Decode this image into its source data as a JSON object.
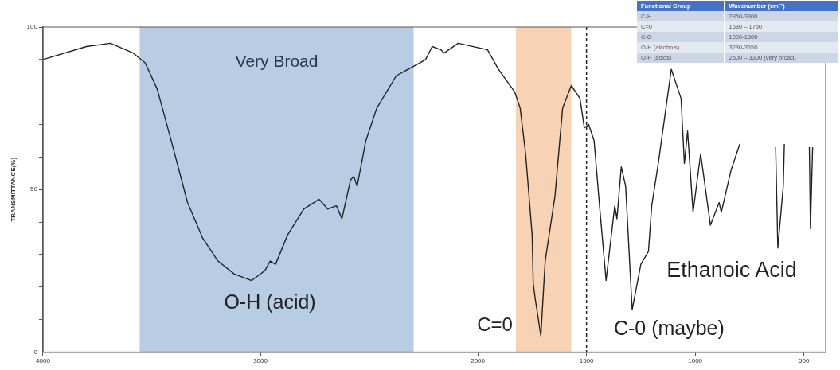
{
  "chart_data": [
    {
      "type": "line",
      "title": "Ethanoic Acid",
      "ylabel": "TRANSMITTANCE(%)",
      "x": [
        4000,
        3800,
        3690,
        3585,
        3530,
        3475,
        3410,
        3335,
        3265,
        3195,
        3120,
        3040,
        2980,
        2955,
        2930,
        2875,
        2800,
        2730,
        2690,
        2650,
        2625,
        2585,
        2570,
        2555,
        2515,
        2465,
        2375,
        2265,
        2240,
        2210,
        2170,
        2155,
        2090,
        1955,
        1905,
        1830,
        1805,
        1780,
        1750,
        1745,
        1735,
        1710,
        1690,
        1645,
        1610,
        1570,
        1530,
        1510,
        1490,
        1465,
        1440,
        1410,
        1370,
        1360,
        1340,
        1320,
        1290,
        1250,
        1215,
        1200,
        1170,
        1110,
        1065,
        1050,
        1035,
        1010,
        975,
        930,
        890,
        880,
        835,
        795,
        700,
        630,
        620,
        595,
        590,
        530,
        475,
        470,
        460
      ],
      "series": [
        {
          "color": "#222222",
          "values": [
            90,
            94,
            95,
            92,
            89,
            81,
            65,
            46,
            35,
            28,
            24,
            22,
            25,
            28,
            27,
            36,
            44,
            47,
            44,
            45,
            41,
            53,
            54,
            51,
            65,
            75,
            85,
            89,
            90,
            94,
            93,
            92,
            95,
            93,
            87,
            80,
            75,
            61,
            36,
            21,
            16,
            5,
            28,
            48,
            75,
            82,
            78,
            69,
            70,
            65,
            45,
            22,
            45,
            41,
            57,
            51,
            13,
            27,
            31,
            45,
            58,
            87,
            78,
            58,
            68,
            43,
            61,
            39,
            46,
            43,
            56,
            64,
            null,
            63,
            32,
            51,
            64,
            null,
            63,
            38,
            63
          ]
        }
      ],
      "xlim": [
        4000,
        400
      ],
      "xticks": [
        4000,
        3000,
        2000,
        1500,
        1000,
        500
      ],
      "ylim": [
        0,
        100
      ],
      "yticks": [
        0,
        {
          "value": 10,
          "label": null
        },
        {
          "value": 20,
          "label": null
        },
        {
          "value": 30,
          "label": null
        },
        {
          "value": 40,
          "label": null
        },
        50,
        {
          "value": 60,
          "label": null
        },
        {
          "value": 70,
          "label": null
        },
        {
          "value": 80,
          "label": null
        },
        {
          "value": 90,
          "label": null
        },
        100
      ],
      "grid": false,
      "legend": false,
      "marker": "none",
      "line_style": "solid",
      "bands": [
        {
          "axis": "x",
          "from": 3555,
          "to": 2295,
          "label": "Very Broad",
          "color": "#b8cce4"
        },
        {
          "axis": "x",
          "from": 1825,
          "to": 1570,
          "label": "C=0",
          "color": "#f8d2b4"
        }
      ],
      "ref_lines": [
        {
          "axis": "x",
          "value": 1500,
          "color": "#222222",
          "line_style": "dashed"
        }
      ],
      "annotations": [
        "O-H (acid)",
        "C-0 (maybe)"
      ]
    },
    {
      "type": "other",
      "annotations": [
        "Functional Group",
        "Wavenumber (cm⁻¹)",
        "C-H",
        "2850-3300",
        "C=0",
        "1680 – 1750",
        "C-0",
        "1000-1300",
        "O-H (alcohols)",
        "3230-3550",
        "O-H (acids)",
        "2500 – 3300 (very broad)"
      ]
    }
  ]
}
